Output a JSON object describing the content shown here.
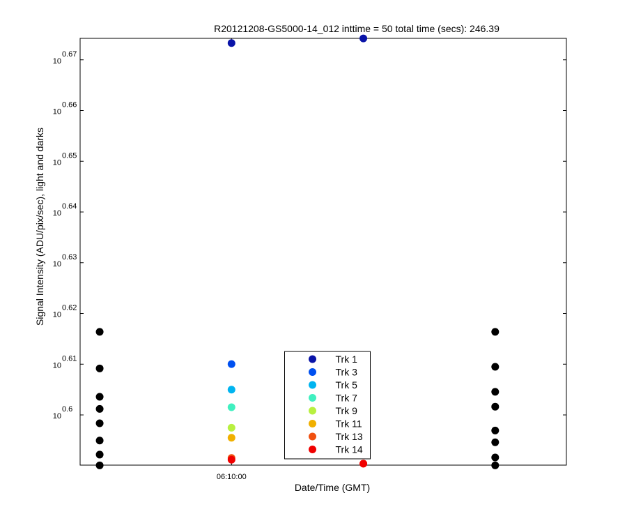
{
  "chart_data": {
    "type": "scatter",
    "title": "R20121208-GS5000-14_012 inttime = 50 total time (secs): 246.39",
    "xlabel": "Date/Time (GMT)",
    "ylabel": "Signal Intensity (ADU/pix/sec), light and darks",
    "log_y": true,
    "x": [
      22140,
      22200,
      22260,
      22320
    ],
    "xlim": [
      22131.1,
      22352.4
    ],
    "xticks": [
      {
        "value": 22200,
        "label": "06:10:00"
      }
    ],
    "ylim": [
      3.8914,
      4.7231
    ],
    "yticks": [
      {
        "value": 3.98107,
        "label": [
          "10",
          "0.6"
        ]
      },
      {
        "value": 4.0738,
        "label": [
          "10",
          "0.61"
        ]
      },
      {
        "value": 4.16869,
        "label": [
          "10",
          "0.62"
        ]
      },
      {
        "value": 4.2658,
        "label": [
          "10",
          "0.63"
        ]
      },
      {
        "value": 4.36516,
        "label": [
          "10",
          "0.64"
        ]
      },
      {
        "value": 4.46684,
        "label": [
          "10",
          "0.65"
        ]
      },
      {
        "value": 4.57088,
        "label": [
          "10",
          "0.66"
        ]
      },
      {
        "value": 4.67735,
        "label": [
          "10",
          "0.67"
        ]
      }
    ],
    "legend": "bottom",
    "series": [
      {
        "color": "#000000",
        "values": [
          4.134,
          null,
          null,
          4.134
        ]
      },
      {
        "color": "#000000",
        "values": [
          4.066,
          null,
          null,
          4.069
        ]
      },
      {
        "color": "#000000",
        "values": [
          4.014,
          null,
          null,
          4.023
        ]
      },
      {
        "color": "#000000",
        "values": [
          3.992,
          null,
          null,
          3.996
        ]
      },
      {
        "color": "#000000",
        "values": [
          3.966,
          null,
          null,
          3.953
        ]
      },
      {
        "color": "#000000",
        "values": [
          3.935,
          null,
          null,
          3.932
        ]
      },
      {
        "color": "#000000",
        "values": [
          3.91,
          null,
          null,
          3.905
        ]
      },
      {
        "color": "#000000",
        "values": [
          3.891,
          null,
          null,
          3.891
        ]
      },
      {
        "name": "Trk 1",
        "color": "#0a14a8",
        "values": [
          null,
          4.713,
          4.723,
          null
        ]
      },
      {
        "name": "Trk 3",
        "color": "#0050f0",
        "values": [
          null,
          4.074,
          null,
          null
        ]
      },
      {
        "name": "Trk 5",
        "color": "#00b4f0",
        "values": [
          null,
          4.027,
          null,
          null
        ]
      },
      {
        "name": "Trk 7",
        "color": "#40f0c0",
        "values": [
          null,
          3.995,
          null,
          null
        ]
      },
      {
        "name": "Trk 9",
        "color": "#b8f040",
        "values": [
          null,
          3.958,
          null,
          null
        ]
      },
      {
        "name": "Trk 11",
        "color": "#f0b000",
        "values": [
          null,
          3.94,
          null,
          null
        ]
      },
      {
        "name": "Trk 13",
        "color": "#f05010",
        "values": [
          null,
          3.904,
          3.894,
          null
        ]
      },
      {
        "name": "Trk 14",
        "color": "#f00000",
        "values": [
          null,
          3.901,
          3.894,
          null
        ]
      }
    ]
  }
}
